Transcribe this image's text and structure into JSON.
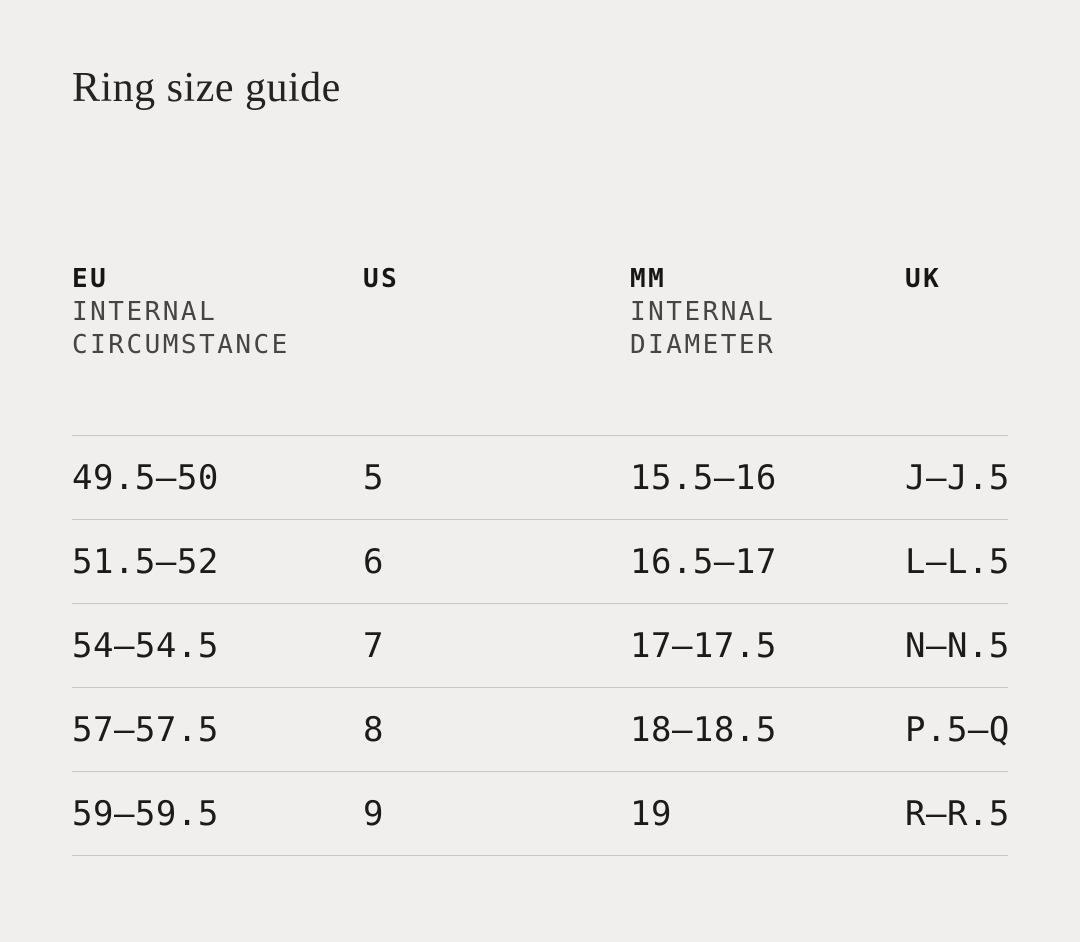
{
  "page": {
    "title": "Ring size guide"
  },
  "colors": {
    "background": "#f0efed",
    "text": "#1b1b1b",
    "muted_subheader": "#454545",
    "divider": "#c9c8c5"
  },
  "table": {
    "columns": [
      {
        "label": "EU",
        "sublines": [
          "INTERNAL",
          "CIRCUMSTANCE"
        ]
      },
      {
        "label": "US",
        "sublines": []
      },
      {
        "label": "MM",
        "sublines": [
          "INTERNAL",
          "DIAMETER"
        ]
      },
      {
        "label": "UK",
        "sublines": []
      }
    ],
    "rows": [
      [
        "49.5—50",
        "5",
        "15.5—16",
        "J—J.5"
      ],
      [
        "51.5—52",
        "6",
        "16.5—17",
        "L—L.5"
      ],
      [
        "54—54.5",
        "7",
        "17—17.5",
        "N—N.5"
      ],
      [
        "57—57.5",
        "8",
        "18—18.5",
        "P.5—Q"
      ],
      [
        "59—59.5",
        "9",
        "19",
        "R—R.5"
      ]
    ]
  }
}
